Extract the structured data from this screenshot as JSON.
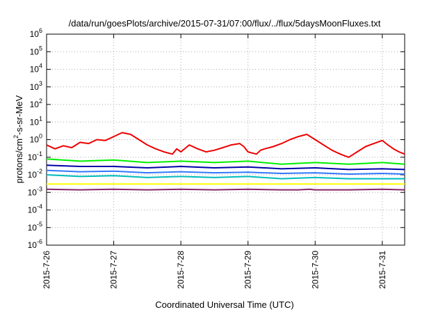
{
  "chart_data": {
    "type": "line",
    "title": "/data/run/goesPlots/archive/2015-07-31/07:00/flux/../flux/5daysMoonFluxes.txt",
    "xlabel": "Coordinated Universal Time (UTC)",
    "ylabel": {
      "prefix": "protons/cm",
      "superscript": "2",
      "suffix": "-s-sr-MeV"
    },
    "y_scale": "log",
    "ylim_exponents": [
      -6,
      6
    ],
    "y_tick_base": "10",
    "y_tick_exponents": [
      "-6",
      "-5",
      "-4",
      "-3",
      "-2",
      "-1",
      "0",
      "1",
      "2",
      "3",
      "4",
      "5",
      "6"
    ],
    "xlim": [
      "2015-07-26",
      "2015-07-31 08:00"
    ],
    "x_tick_labels": [
      "2015-7-26",
      "2015-7-27",
      "2015-7-28",
      "2015-7-29",
      "2015-7-30",
      "2015-7-31"
    ],
    "grid": true,
    "legend": "none",
    "series": [
      {
        "color": "#ee0000",
        "values": [
          [
            "2015-07-26 00:00",
            0.5
          ],
          [
            "2015-07-26 03:00",
            0.3
          ],
          [
            "2015-07-26 06:00",
            0.45
          ],
          [
            "2015-07-26 09:00",
            0.35
          ],
          [
            "2015-07-26 12:00",
            0.7
          ],
          [
            "2015-07-26 15:00",
            0.6
          ],
          [
            "2015-07-26 18:00",
            1.0
          ],
          [
            "2015-07-26 21:00",
            0.9
          ],
          [
            "2015-07-27 00:00",
            1.5
          ],
          [
            "2015-07-27 03:00",
            2.5
          ],
          [
            "2015-07-27 06:00",
            2.0
          ],
          [
            "2015-07-27 09:00",
            1.0
          ],
          [
            "2015-07-27 12:00",
            0.5
          ],
          [
            "2015-07-27 15:00",
            0.3
          ],
          [
            "2015-07-27 18:00",
            0.2
          ],
          [
            "2015-07-27 21:00",
            0.15
          ],
          [
            "2015-07-27 22:30",
            0.3
          ],
          [
            "2015-07-28 00:00",
            0.2
          ],
          [
            "2015-07-28 03:00",
            0.5
          ],
          [
            "2015-07-28 06:00",
            0.3
          ],
          [
            "2015-07-28 09:00",
            0.2
          ],
          [
            "2015-07-28 12:00",
            0.25
          ],
          [
            "2015-07-28 15:00",
            0.35
          ],
          [
            "2015-07-28 18:00",
            0.5
          ],
          [
            "2015-07-28 21:00",
            0.6
          ],
          [
            "2015-07-28 22:30",
            0.4
          ],
          [
            "2015-07-29 00:00",
            0.2
          ],
          [
            "2015-07-29 03:00",
            0.15
          ],
          [
            "2015-07-29 04:30",
            0.25
          ],
          [
            "2015-07-29 06:00",
            0.3
          ],
          [
            "2015-07-29 09:00",
            0.4
          ],
          [
            "2015-07-29 12:00",
            0.6
          ],
          [
            "2015-07-29 15:00",
            1.0
          ],
          [
            "2015-07-29 18:00",
            1.5
          ],
          [
            "2015-07-29 21:00",
            2.0
          ],
          [
            "2015-07-30 00:00",
            1.0
          ],
          [
            "2015-07-30 03:00",
            0.5
          ],
          [
            "2015-07-30 06:00",
            0.25
          ],
          [
            "2015-07-30 09:00",
            0.15
          ],
          [
            "2015-07-30 12:00",
            0.1
          ],
          [
            "2015-07-30 15:00",
            0.2
          ],
          [
            "2015-07-30 18:00",
            0.4
          ],
          [
            "2015-07-30 21:00",
            0.6
          ],
          [
            "2015-07-31 00:00",
            0.9
          ],
          [
            "2015-07-31 02:00",
            0.5
          ],
          [
            "2015-07-31 04:00",
            0.3
          ],
          [
            "2015-07-31 06:00",
            0.2
          ],
          [
            "2015-07-31 08:00",
            0.15
          ]
        ]
      },
      {
        "color": "#00ee00",
        "values": [
          [
            "2015-07-26 00:00",
            0.08
          ],
          [
            "2015-07-26 12:00",
            0.06
          ],
          [
            "2015-07-27 00:00",
            0.07
          ],
          [
            "2015-07-27 12:00",
            0.05
          ],
          [
            "2015-07-28 00:00",
            0.06
          ],
          [
            "2015-07-28 12:00",
            0.05
          ],
          [
            "2015-07-29 00:00",
            0.06
          ],
          [
            "2015-07-29 12:00",
            0.04
          ],
          [
            "2015-07-30 00:00",
            0.05
          ],
          [
            "2015-07-30 12:00",
            0.04
          ],
          [
            "2015-07-31 00:00",
            0.05
          ],
          [
            "2015-07-31 08:00",
            0.04
          ]
        ]
      },
      {
        "color": "#0000aa",
        "values": [
          [
            "2015-07-26 00:00",
            0.035
          ],
          [
            "2015-07-26 12:00",
            0.03
          ],
          [
            "2015-07-27 00:00",
            0.03
          ],
          [
            "2015-07-27 12:00",
            0.025
          ],
          [
            "2015-07-28 00:00",
            0.03
          ],
          [
            "2015-07-28 12:00",
            0.025
          ],
          [
            "2015-07-29 00:00",
            0.028
          ],
          [
            "2015-07-29 12:00",
            0.022
          ],
          [
            "2015-07-30 00:00",
            0.025
          ],
          [
            "2015-07-30 12:00",
            0.02
          ],
          [
            "2015-07-31 00:00",
            0.022
          ],
          [
            "2015-07-31 08:00",
            0.02
          ]
        ]
      },
      {
        "color": "#3377ff",
        "values": [
          [
            "2015-07-26 00:00",
            0.018
          ],
          [
            "2015-07-26 12:00",
            0.015
          ],
          [
            "2015-07-27 00:00",
            0.016
          ],
          [
            "2015-07-27 12:00",
            0.013
          ],
          [
            "2015-07-28 00:00",
            0.015
          ],
          [
            "2015-07-28 12:00",
            0.013
          ],
          [
            "2015-07-29 00:00",
            0.014
          ],
          [
            "2015-07-29 12:00",
            0.012
          ],
          [
            "2015-07-30 00:00",
            0.013
          ],
          [
            "2015-07-30 12:00",
            0.011
          ],
          [
            "2015-07-31 00:00",
            0.012
          ],
          [
            "2015-07-31 08:00",
            0.011
          ]
        ]
      },
      {
        "color": "#00bbbb",
        "values": [
          [
            "2015-07-26 00:00",
            0.01
          ],
          [
            "2015-07-26 12:00",
            0.008
          ],
          [
            "2015-07-27 00:00",
            0.009
          ],
          [
            "2015-07-27 12:00",
            0.007
          ],
          [
            "2015-07-28 00:00",
            0.008
          ],
          [
            "2015-07-28 12:00",
            0.007
          ],
          [
            "2015-07-29 00:00",
            0.008
          ],
          [
            "2015-07-29 12:00",
            0.006
          ],
          [
            "2015-07-30 00:00",
            0.007
          ],
          [
            "2015-07-30 12:00",
            0.006
          ],
          [
            "2015-07-31 00:00",
            0.006
          ],
          [
            "2015-07-31 08:00",
            0.006
          ]
        ]
      },
      {
        "color": "#ffff00",
        "values": [
          [
            "2015-07-26 00:00",
            0.003
          ],
          [
            "2015-07-26 12:00",
            0.003
          ],
          [
            "2015-07-27 00:00",
            0.003
          ],
          [
            "2015-07-27 12:00",
            0.003
          ],
          [
            "2015-07-28 00:00",
            0.003
          ],
          [
            "2015-07-28 12:00",
            0.003
          ],
          [
            "2015-07-29 00:00",
            0.003
          ],
          [
            "2015-07-29 12:00",
            0.003
          ],
          [
            "2015-07-30 00:00",
            0.003
          ],
          [
            "2015-07-30 12:00",
            0.003
          ],
          [
            "2015-07-31 00:00",
            0.003
          ],
          [
            "2015-07-31 08:00",
            0.003
          ]
        ]
      },
      {
        "color": "#882266",
        "values": [
          [
            "2015-07-26 00:00",
            0.0015
          ],
          [
            "2015-07-26 12:00",
            0.0014
          ],
          [
            "2015-07-27 00:00",
            0.0015
          ],
          [
            "2015-07-27 12:00",
            0.0014
          ],
          [
            "2015-07-28 00:00",
            0.0015
          ],
          [
            "2015-07-28 12:00",
            0.0014
          ],
          [
            "2015-07-29 00:00",
            0.0015
          ],
          [
            "2015-07-29 12:00",
            0.0014
          ],
          [
            "2015-07-29 18:00",
            0.0014
          ],
          [
            "2015-07-29 22:00",
            0.0015
          ],
          [
            "2015-07-30 00:00",
            0.0014
          ],
          [
            "2015-07-30 12:00",
            0.0014
          ],
          [
            "2015-07-31 00:00",
            0.0015
          ],
          [
            "2015-07-31 08:00",
            0.0014
          ]
        ]
      }
    ]
  }
}
